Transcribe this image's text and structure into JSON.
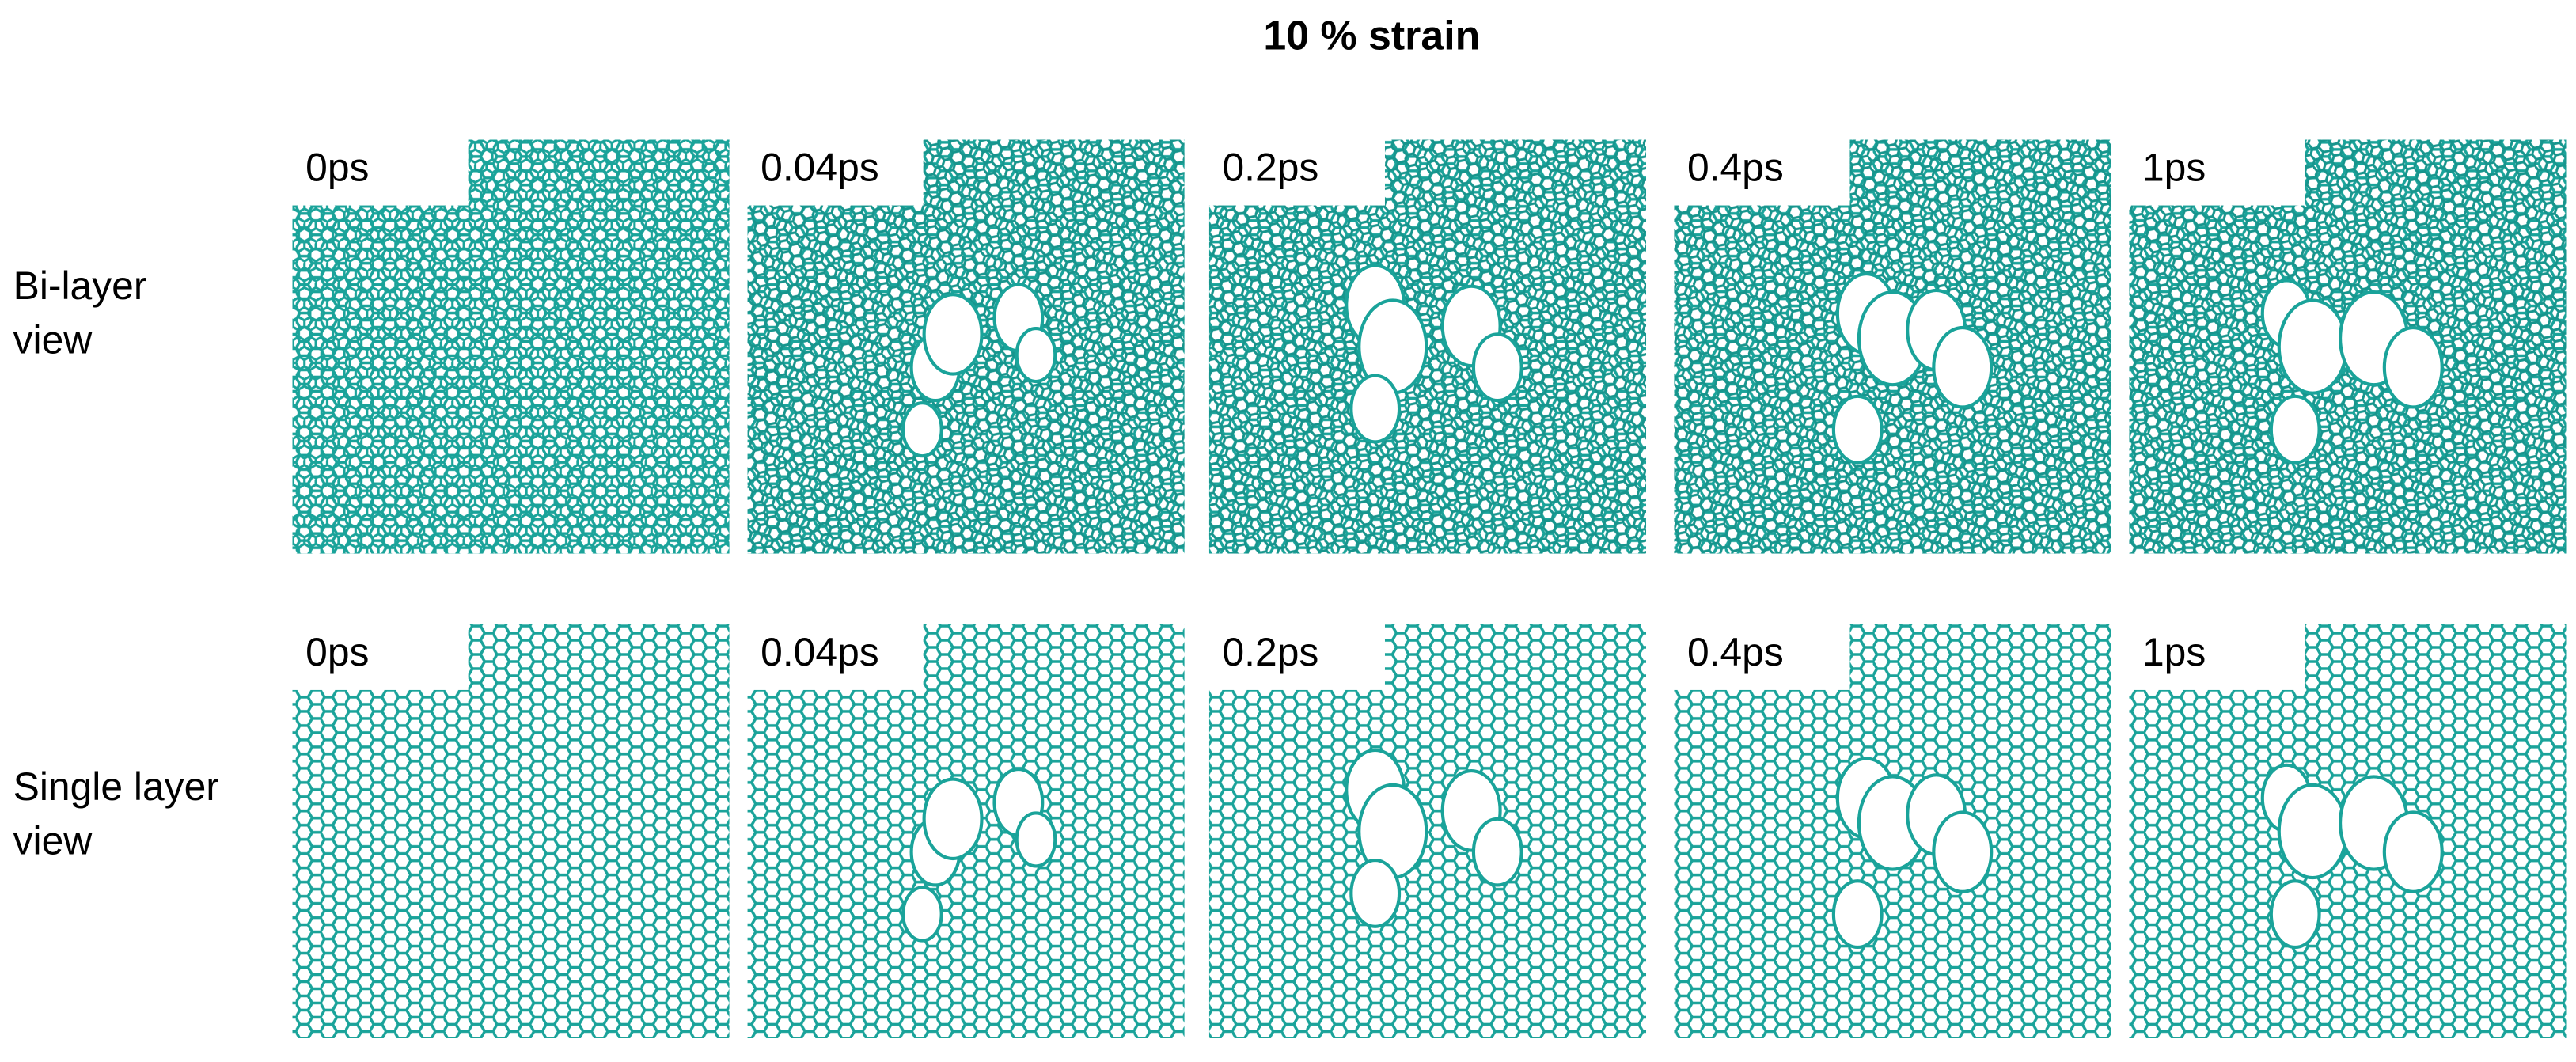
{
  "title": "10 % strain",
  "rows": [
    {
      "label": [
        "Bi-layer",
        "view"
      ],
      "panels": [
        "0ps",
        "0.04ps",
        "0.2ps",
        "0.4ps",
        "1ps"
      ]
    },
    {
      "label": [
        "Single layer",
        "view"
      ],
      "panels": [
        "0ps",
        "0.04ps",
        "0.2ps",
        "0.4ps",
        "1ps"
      ]
    }
  ]
}
